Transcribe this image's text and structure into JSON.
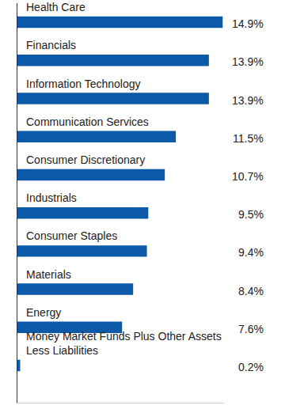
{
  "chart_data": {
    "type": "bar",
    "orientation": "horizontal",
    "categories": [
      "Health Care",
      "Financials",
      "Information Technology",
      "Communication Services",
      "Consumer Discretionary",
      "Industrials",
      "Consumer Staples",
      "Materials",
      "Energy",
      "Money Market Funds Plus Other Assets Less Liabilities"
    ],
    "values": [
      14.9,
      13.9,
      13.9,
      11.5,
      10.7,
      9.5,
      9.4,
      8.4,
      7.6,
      0.2
    ],
    "value_labels": [
      "14.9%",
      "13.9%",
      "13.9%",
      "11.5%",
      "10.7%",
      "9.5%",
      "9.4%",
      "8.4%",
      "7.6%",
      "0.2%"
    ],
    "color": "#0c59a8",
    "xlim": [
      0,
      15
    ],
    "xticks": [],
    "grid": false,
    "tick_labels": false,
    "data_labels": true
  }
}
